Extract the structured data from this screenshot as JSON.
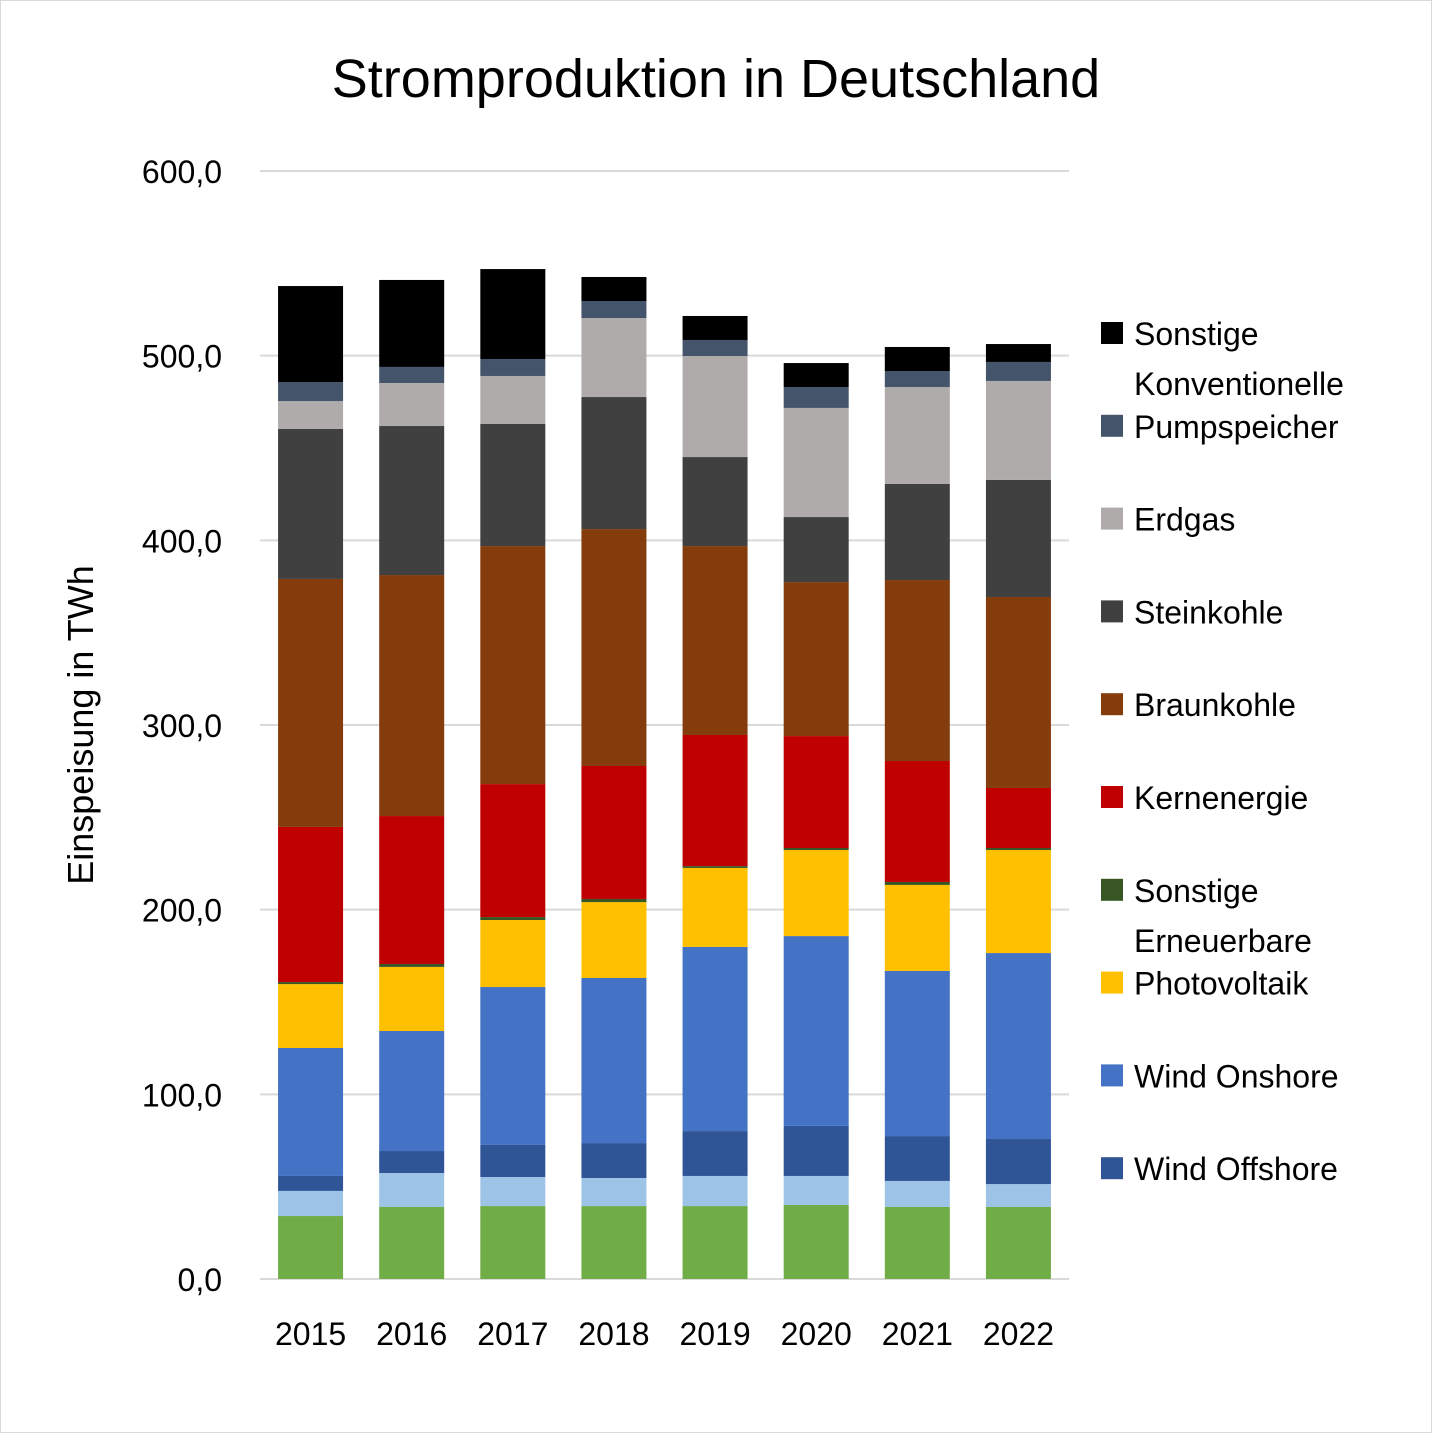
{
  "chart_data": {
    "type": "bar",
    "stacked": true,
    "title": "Stromproduktion in Deutschland",
    "xlabel": "",
    "ylabel": "Einspeisung in TWh",
    "ylim": [
      0,
      600
    ],
    "yticks": [
      "0,0",
      "100,0",
      "200,0",
      "300,0",
      "400,0",
      "500,0",
      "600,0"
    ],
    "grid": true,
    "legend_position": "right",
    "categories": [
      "2015",
      "2016",
      "2017",
      "2018",
      "2019",
      "2020",
      "2021",
      "2022"
    ],
    "series": [
      {
        "name": null,
        "color": "#70ad47",
        "values": [
          34.1,
          39.0,
          39.5,
          39.5,
          39.5,
          40.1,
          39.0,
          39.0
        ]
      },
      {
        "name": null,
        "color": "#9dc3e6",
        "values": [
          13.6,
          18.4,
          15.7,
          15.2,
          16.3,
          15.7,
          14.1,
          12.4
        ]
      },
      {
        "name": "Wind Offshore",
        "color": "#2f5597",
        "values": [
          8.1,
          11.9,
          17.4,
          18.9,
          24.3,
          27.1,
          24.3,
          24.4
        ]
      },
      {
        "name": "Wind Onshore",
        "color": "#4472c4",
        "values": [
          69.3,
          65.0,
          85.5,
          89.4,
          99.7,
          102.8,
          89.4,
          100.7
        ]
      },
      {
        "name": "Photovoltaik",
        "color": "#ffc000",
        "values": [
          34.6,
          34.7,
          36.3,
          41.1,
          42.8,
          46.6,
          46.6,
          55.8
        ]
      },
      {
        "name": "Sonstige Erneuerbare",
        "color": "#375623",
        "values": [
          1.1,
          1.6,
          1.6,
          1.7,
          1.0,
          1.1,
          1.6,
          1.1
        ]
      },
      {
        "name": "Kernenergie",
        "color": "#c00000",
        "values": [
          84.0,
          80.1,
          72.0,
          72.0,
          71.0,
          60.6,
          65.5,
          32.5
        ]
      },
      {
        "name": "Braunkohle",
        "color": "#843c0c",
        "values": [
          134.3,
          130.5,
          128.9,
          128.3,
          102.3,
          83.4,
          98.0,
          103.4
        ]
      },
      {
        "name": "Steinkohle",
        "color": "#404040",
        "values": [
          81.2,
          80.7,
          66.1,
          71.5,
          48.2,
          35.2,
          52.0,
          63.4
        ]
      },
      {
        "name": "Erdgas",
        "color": "#afabab",
        "values": [
          15.1,
          23.3,
          26.0,
          42.8,
          54.7,
          59.1,
          52.5,
          53.6
        ]
      },
      {
        "name": "Pumpspeicher",
        "color": "#44546a",
        "values": [
          10.3,
          8.7,
          9.2,
          9.2,
          8.7,
          11.3,
          8.7,
          10.3
        ]
      },
      {
        "name": "Sonstige Konventionelle",
        "color": "#000000",
        "values": [
          52.0,
          47.1,
          48.7,
          13.0,
          13.0,
          13.0,
          13.0,
          9.7
        ]
      }
    ]
  }
}
